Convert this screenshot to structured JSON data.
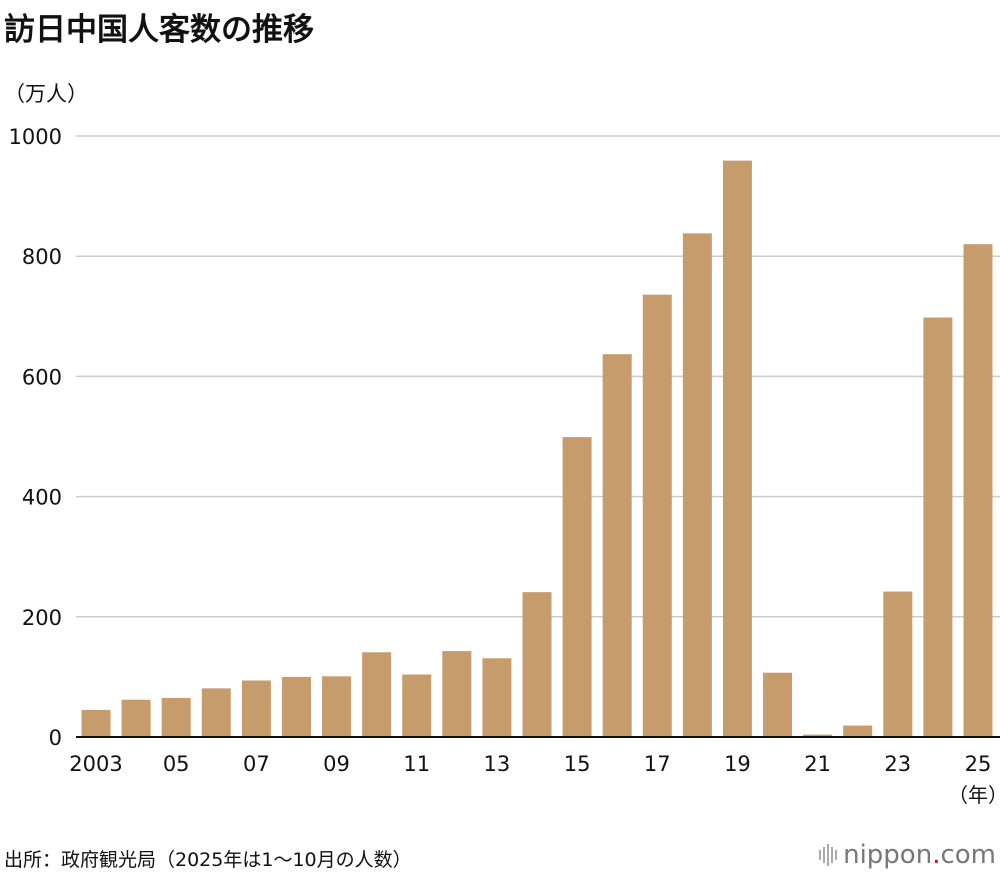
{
  "title": "訪日中国人客数の推移",
  "unit_label": "（万人）",
  "source": "出所：政府観光局（2025年は1～10月の人数）",
  "logo": {
    "name": "nippon",
    "dot": ".",
    "suffix": "com"
  },
  "colors": {
    "bar": "#c69c6d",
    "grid": "#cccccc",
    "axis": "#111111"
  },
  "chart_data": {
    "type": "bar",
    "title": "訪日中国人客数の推移",
    "ylabel": "（万人）",
    "xlabel": "（年）",
    "ylim": [
      0,
      1000
    ],
    "yticks": [
      0,
      200,
      400,
      600,
      800,
      1000
    ],
    "grid": true,
    "categories": [
      "2003",
      "2004",
      "2005",
      "2006",
      "2007",
      "2008",
      "2009",
      "2010",
      "2011",
      "2012",
      "2013",
      "2014",
      "2015",
      "2016",
      "2017",
      "2018",
      "2019",
      "2020",
      "2021",
      "2022",
      "2023",
      "2024",
      "2025"
    ],
    "tick_labels": [
      "2003",
      "05",
      "07",
      "09",
      "11",
      "13",
      "15",
      "17",
      "19",
      "21",
      "23",
      "25"
    ],
    "values": [
      45,
      62,
      65,
      81,
      94,
      100,
      101,
      141,
      104,
      143,
      131,
      241,
      499,
      637,
      736,
      838,
      959,
      107,
      4,
      19,
      242,
      698,
      820
    ]
  }
}
